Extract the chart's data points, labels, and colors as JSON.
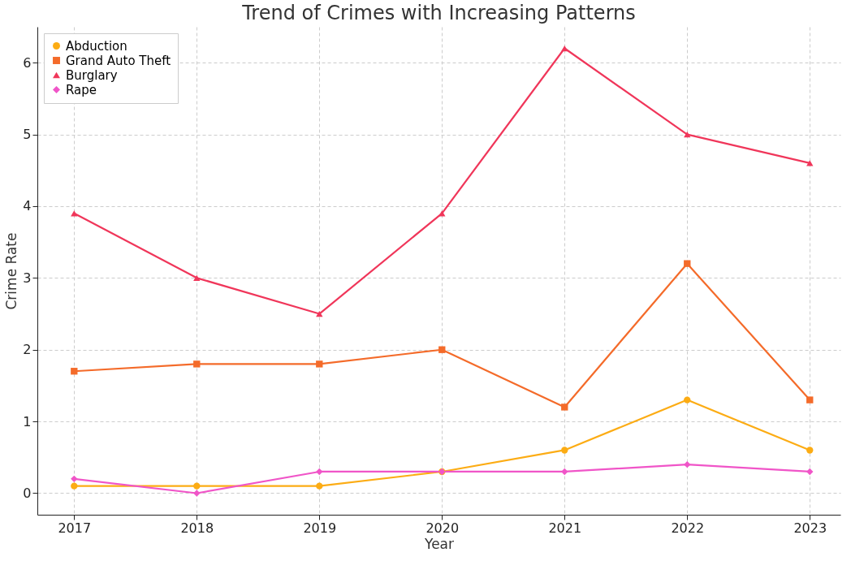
{
  "chart_data": {
    "type": "line",
    "title": "Trend of Crimes with Increasing Patterns",
    "xlabel": "Year",
    "ylabel": "Crime Rate",
    "x": [
      2017,
      2018,
      2019,
      2020,
      2021,
      2022,
      2023
    ],
    "series": [
      {
        "name": "Abduction",
        "color": "#fcac14",
        "marker": "circle",
        "values": [
          0.1,
          0.1,
          0.1,
          0.3,
          0.6,
          1.3,
          0.6
        ]
      },
      {
        "name": "Grand Auto Theft",
        "color": "#f46b2a",
        "marker": "square",
        "values": [
          1.7,
          1.8,
          1.8,
          2.0,
          1.2,
          3.2,
          1.3
        ]
      },
      {
        "name": "Burglary",
        "color": "#f0365a",
        "marker": "triangle",
        "values": [
          3.9,
          3.0,
          2.5,
          3.9,
          6.2,
          5.0,
          4.6
        ]
      },
      {
        "name": "Rape",
        "color": "#f055c8",
        "marker": "diamond",
        "values": [
          0.2,
          0.0,
          0.3,
          0.3,
          0.3,
          0.4,
          0.3
        ]
      }
    ],
    "xlim": [
      2016.7,
      2023.25
    ],
    "xticks": [
      2017,
      2018,
      2019,
      2020,
      2021,
      2022,
      2023
    ],
    "ylim": [
      -0.3,
      6.5
    ],
    "yticks": [
      0,
      1,
      2,
      3,
      4,
      5,
      6
    ],
    "grid": true,
    "legend": "top left",
    "line_style": "solid"
  }
}
